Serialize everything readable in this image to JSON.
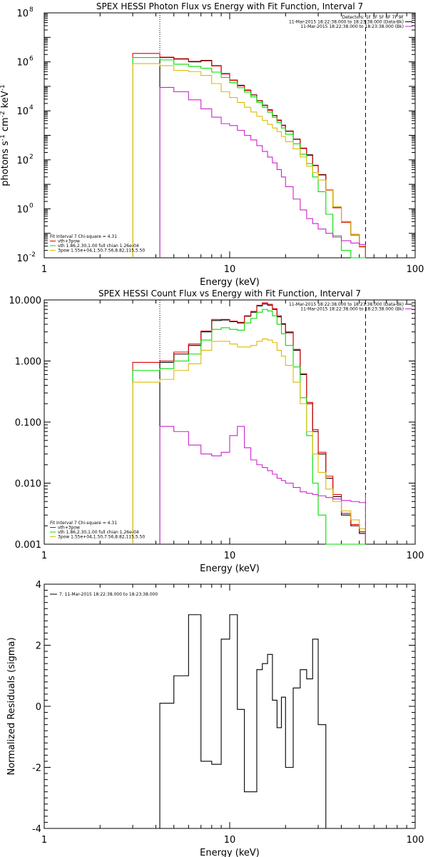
{
  "chart_data": [
    {
      "type": "line",
      "title": "SPEX HESSI Photon Flux vs Energy with Fit Function, Interval 7",
      "xlabel": "Energy (keV)",
      "ylabel_parts": [
        "photons s",
        "-1",
        " cm",
        "-2",
        " keV",
        "-1"
      ],
      "xscale": "log",
      "yscale": "log",
      "xlim": [
        1,
        100
      ],
      "ylim": [
        0.01,
        100000000
      ],
      "xticks": [
        {
          "v": 1,
          "label": "1"
        },
        {
          "v": 10,
          "label": "10"
        },
        {
          "v": 100,
          "label": "100"
        }
      ],
      "yticks": [
        {
          "v": 0.01,
          "base": "10",
          "exp": "-2"
        },
        {
          "v": 1,
          "base": "10",
          "exp": "0"
        },
        {
          "v": 100,
          "base": "10",
          "exp": "2"
        },
        {
          "v": 10000,
          "base": "10",
          "exp": "4"
        },
        {
          "v": 1000000,
          "base": "10",
          "exp": "6"
        },
        {
          "v": 100000000,
          "base": "10",
          "exp": "8"
        }
      ],
      "vlines": [
        {
          "x": 4.2,
          "style": "dotted",
          "color": "#000000"
        },
        {
          "x": 54,
          "style": "dashed",
          "color": "#000000"
        }
      ],
      "legend_top": {
        "position": "top-right",
        "lines": [
          {
            "text": "Detectors: 1F 3F 5F 6F 7F 9F",
            "color": "#000000"
          },
          {
            "text": "11-Mar-2015 18:22:38.000 to 18:23:38.000 (Data-Bk)",
            "color": "#000000"
          },
          {
            "text": "11-Mar-2015 18:22:38.000 to 18:23:38.000 (Bk)",
            "color": "#cc22cc"
          }
        ]
      },
      "legend_fit": {
        "position": "bottom-left",
        "lines": [
          {
            "text": "Fit Interval 7    Chi-square = 4.31",
            "color": "#000000"
          },
          {
            "text": "vth+3pow",
            "color": "#dd0000"
          },
          {
            "text": "vth 1.86,2.30,1.00   full chian 1.26e-04",
            "color": "#00dd00"
          },
          {
            "text": "3pow 1.55e+04,1.50,7.56,8.82,115,5.50",
            "color": "#ddbb00"
          }
        ]
      },
      "series": [
        {
          "key": "data",
          "color": "#000000",
          "x": [
            3,
            4.2,
            5,
            6,
            7,
            8,
            9,
            10,
            11,
            12,
            13,
            14,
            15,
            16,
            17,
            18,
            19,
            20,
            22,
            24,
            26,
            28,
            30,
            33,
            36,
            40,
            45,
            50,
            54
          ],
          "y": [
            0,
            1500000,
            1300000,
            1000000,
            1150000,
            700000,
            330000,
            180000,
            110000,
            70000,
            45000,
            26000,
            17000,
            11000,
            6500,
            4200,
            2600,
            1500,
            700,
            300,
            160,
            60,
            25,
            6,
            1.2,
            0.3,
            0.09,
            0.03,
            0
          ]
        },
        {
          "key": "model",
          "color": "#dd0000",
          "x": [
            3,
            4.2,
            5,
            6,
            7,
            8,
            9,
            10,
            11,
            12,
            13,
            14,
            15,
            16,
            17,
            18,
            19,
            20,
            22,
            24,
            26,
            28,
            30,
            33,
            36,
            40,
            45,
            50,
            54
          ],
          "y": [
            2200000,
            1550000,
            1350000,
            1050000,
            1100000,
            680000,
            320000,
            175000,
            105000,
            68000,
            44000,
            25500,
            16500,
            10500,
            6300,
            4000,
            2500,
            1450,
            680,
            290,
            150,
            58,
            24,
            5.8,
            1.1,
            0.28,
            0.085,
            0.028,
            0
          ]
        },
        {
          "key": "vth",
          "color": "#00dd00",
          "x": [
            3,
            4.2,
            5,
            6,
            7,
            8,
            9,
            10,
            11,
            12,
            13,
            14,
            15,
            16,
            17,
            18,
            19,
            20,
            22,
            24,
            26,
            28,
            30,
            33,
            36,
            40,
            45,
            50,
            54
          ],
          "y": [
            1500000,
            1200000,
            800000,
            650000,
            550000,
            380000,
            230000,
            140000,
            88000,
            58000,
            37000,
            22000,
            14000,
            8800,
            5400,
            3300,
            2000,
            1100,
            450,
            170,
            70,
            20,
            5,
            0.6,
            0.08,
            0.02,
            0.01,
            0.01,
            0.01
          ]
        },
        {
          "key": "pow",
          "color": "#ddbb00",
          "x": [
            3,
            4.2,
            5,
            6,
            7,
            8,
            9,
            10,
            11,
            12,
            13,
            14,
            15,
            16,
            17,
            18,
            19,
            20,
            22,
            24,
            26,
            28,
            30,
            33,
            36,
            40,
            45,
            50,
            54
          ],
          "y": [
            850000,
            700000,
            450000,
            400000,
            280000,
            130000,
            60000,
            35000,
            22000,
            14000,
            9000,
            6000,
            4000,
            2800,
            2000,
            1400,
            900,
            550,
            280,
            130,
            55,
            30,
            15,
            6,
            1.2,
            0.3,
            0.09,
            0.03,
            0
          ]
        },
        {
          "key": "bk",
          "color": "#cc22cc",
          "x": [
            4.2,
            5,
            6,
            7,
            8,
            9,
            10,
            11,
            12,
            13,
            14,
            15,
            16,
            17,
            18,
            19,
            20,
            22,
            24,
            26,
            28,
            30,
            33,
            36,
            40,
            45,
            50,
            54
          ],
          "y": [
            90000,
            60000,
            28000,
            12000,
            5500,
            3000,
            2500,
            1600,
            1000,
            650,
            380,
            220,
            130,
            75,
            40,
            20,
            8,
            2.5,
            0.9,
            0.4,
            0.25,
            0.15,
            0.1,
            0.07,
            0.05,
            0.04,
            0.035,
            0.03
          ]
        }
      ]
    },
    {
      "type": "line",
      "title": "SPEX HESSI Count Flux vs Energy with Fit Function, Interval 7",
      "xlabel": "Energy (keV)",
      "xscale": "log",
      "yscale": "log",
      "xlim": [
        1,
        100
      ],
      "ylim": [
        0.001,
        10
      ],
      "xticks": [
        {
          "v": 1,
          "label": "1"
        },
        {
          "v": 10,
          "label": "10"
        },
        {
          "v": 100,
          "label": "100"
        }
      ],
      "yticks": [
        {
          "v": 0.001,
          "label": "0.001"
        },
        {
          "v": 0.01,
          "label": "0.010"
        },
        {
          "v": 0.1,
          "label": "0.100"
        },
        {
          "v": 1,
          "label": "1.000"
        },
        {
          "v": 10,
          "label": "10.000"
        }
      ],
      "vlines": [
        {
          "x": 4.2,
          "style": "dotted",
          "color": "#000000"
        },
        {
          "x": 54,
          "style": "dashed",
          "color": "#000000"
        }
      ],
      "legend_top": {
        "position": "top-right",
        "lines": [
          {
            "text": "11-Mar-2015 18:22:38.000 to 18:23:38.000 (Data-Bk)",
            "color": "#000000"
          },
          {
            "text": "11-Mar-2015 18:22:38.000 to 18:23:38.000 (Bk)",
            "color": "#cc22cc"
          }
        ]
      },
      "legend_fit": {
        "position": "bottom-left",
        "lines": [
          {
            "text": "Fit Interval 7    Chi-square = 4.31",
            "color": "#000000"
          },
          {
            "text": "vth+3pow",
            "color": "#dd0000"
          },
          {
            "text": "vth 1.86,2.30,1.00   full chian 1.26e-04",
            "color": "#00dd00"
          },
          {
            "text": "3pow 1.55e+04,1.50,7.56,8.82,115,5.50",
            "color": "#ddbb00"
          }
        ]
      },
      "series": [
        {
          "key": "data",
          "color": "#000000",
          "x": [
            3,
            4.2,
            5,
            6,
            7,
            8,
            9,
            10,
            11,
            12,
            13,
            14,
            15,
            16,
            17,
            18,
            19,
            20,
            22,
            24,
            26,
            28,
            30,
            33,
            36,
            40,
            45,
            50,
            54
          ],
          "y": [
            0,
            0.95,
            1.3,
            1.8,
            3.0,
            4.6,
            4.7,
            4.4,
            4.2,
            5.4,
            6.3,
            8.0,
            8.6,
            8.2,
            7.0,
            5.3,
            4.0,
            2.9,
            1.5,
            0.6,
            0.2,
            0.07,
            0.03,
            0.012,
            0.006,
            0.003,
            0.002,
            0.0015,
            0
          ]
        },
        {
          "key": "model",
          "color": "#dd0000",
          "x": [
            3,
            4.2,
            5,
            6,
            7,
            8,
            9,
            10,
            11,
            12,
            13,
            14,
            15,
            16,
            17,
            18,
            19,
            20,
            22,
            24,
            26,
            28,
            30,
            33,
            36,
            40,
            45,
            50,
            54
          ],
          "y": [
            0.95,
            1.0,
            1.4,
            1.9,
            3.1,
            4.8,
            4.8,
            4.5,
            4.3,
            5.5,
            6.5,
            8.2,
            9.0,
            8.5,
            7.2,
            5.5,
            4.1,
            3.0,
            1.55,
            0.62,
            0.21,
            0.075,
            0.032,
            0.013,
            0.0065,
            0.0032,
            0.0021,
            0.0016,
            0
          ]
        },
        {
          "key": "vth",
          "color": "#00dd00",
          "x": [
            3,
            4.2,
            5,
            6,
            7,
            8,
            9,
            10,
            11,
            12,
            13,
            14,
            15,
            16,
            17,
            18,
            19,
            20,
            22,
            24,
            26,
            28,
            30,
            33,
            36,
            40,
            45,
            50,
            54
          ],
          "y": [
            0.7,
            0.75,
            1.0,
            1.3,
            2.2,
            3.3,
            3.5,
            3.3,
            3.2,
            4.2,
            5.0,
            6.3,
            7.0,
            6.6,
            5.5,
            4.0,
            2.8,
            1.8,
            0.8,
            0.25,
            0.06,
            0.01,
            0.003,
            0.001,
            0.001,
            0.001,
            0.001,
            0.001,
            0.001
          ]
        },
        {
          "key": "pow",
          "color": "#ddbb00",
          "x": [
            3,
            4.2,
            5,
            6,
            7,
            8,
            9,
            10,
            11,
            12,
            13,
            14,
            15,
            16,
            17,
            18,
            19,
            20,
            22,
            24,
            26,
            28,
            30,
            33,
            36,
            40,
            45,
            50,
            54
          ],
          "y": [
            0.45,
            0.5,
            0.7,
            0.9,
            1.5,
            2.1,
            2.1,
            1.9,
            1.7,
            1.7,
            1.8,
            2.1,
            2.3,
            2.2,
            2.0,
            1.5,
            1.2,
            0.85,
            0.45,
            0.2,
            0.07,
            0.03,
            0.015,
            0.008,
            0.005,
            0.0035,
            0.0025,
            0.0018,
            0
          ]
        },
        {
          "key": "bk",
          "color": "#cc22cc",
          "x": [
            4.2,
            5,
            6,
            7,
            8,
            9,
            10,
            11,
            12,
            13,
            14,
            15,
            16,
            17,
            18,
            19,
            20,
            22,
            24,
            26,
            28,
            30,
            33,
            36,
            40,
            45,
            50,
            54
          ],
          "y": [
            0.085,
            0.07,
            0.042,
            0.03,
            0.028,
            0.032,
            0.06,
            0.085,
            0.038,
            0.024,
            0.02,
            0.018,
            0.016,
            0.014,
            0.012,
            0.011,
            0.01,
            0.0085,
            0.0072,
            0.0068,
            0.0065,
            0.0062,
            0.0058,
            0.0055,
            0.0052,
            0.005,
            0.0048,
            0.0065
          ]
        }
      ]
    },
    {
      "type": "line",
      "title": "",
      "xlabel": "Energy (keV)",
      "ylabel": "Normalized Residuals (sigma)",
      "xscale": "log",
      "yscale": "linear",
      "xlim": [
        1,
        100
      ],
      "ylim": [
        -4,
        4
      ],
      "xticks": [
        {
          "v": 1,
          "label": "1"
        },
        {
          "v": 10,
          "label": "10"
        },
        {
          "v": 100,
          "label": "100"
        }
      ],
      "yticks": [
        {
          "v": -4,
          "label": "-4"
        },
        {
          "v": -2,
          "label": "-2"
        },
        {
          "v": 0,
          "label": "0"
        },
        {
          "v": 2,
          "label": "2"
        },
        {
          "v": 4,
          "label": "4"
        }
      ],
      "legend_top": {
        "position": "top-left",
        "lines": [
          {
            "text": "7. 11-Mar-2015 18:22:38.000 to 18:23:38.000",
            "color": "#000000"
          }
        ]
      },
      "series": [
        {
          "key": "resid",
          "color": "#000000",
          "x": [
            4.2,
            5,
            6,
            7,
            8,
            9,
            10,
            11,
            12,
            13,
            14,
            15,
            16,
            17,
            18,
            19,
            20,
            22,
            24,
            26,
            28,
            30,
            33,
            36,
            40,
            45,
            50,
            54
          ],
          "y": [
            0.1,
            1.0,
            3.0,
            -1.8,
            -1.9,
            2.2,
            3.0,
            -0.1,
            -2.8,
            -2.8,
            1.2,
            1.4,
            1.7,
            0.2,
            -0.7,
            0.3,
            -2.0,
            0.6,
            1.2,
            0.9,
            2.2,
            -0.6,
            -4.0,
            -4.0,
            -4.0,
            -4.0,
            -4.0,
            -4.0
          ]
        }
      ]
    }
  ]
}
